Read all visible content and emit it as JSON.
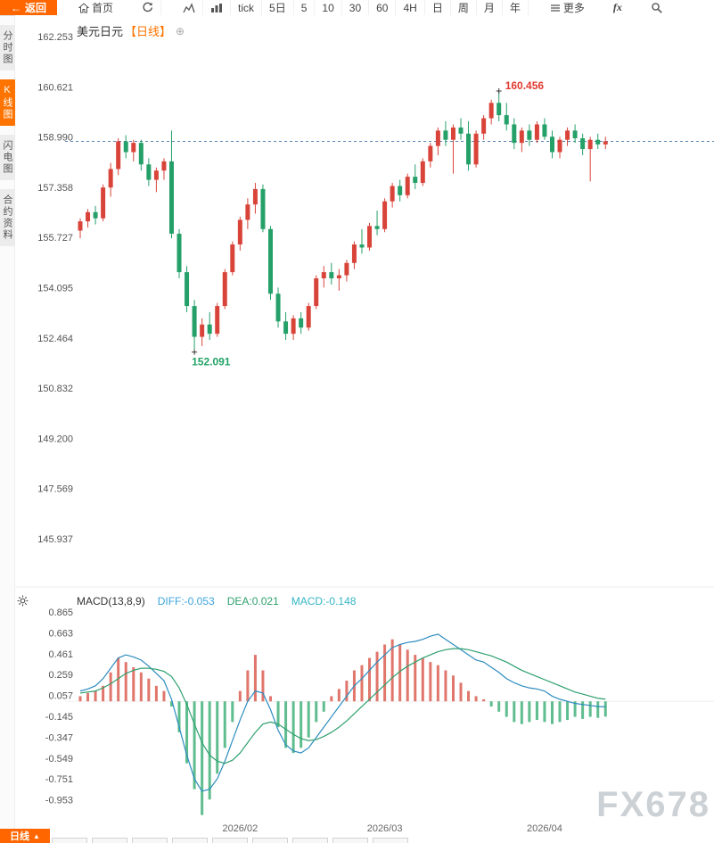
{
  "toolbar": {
    "back_label": "返回",
    "home_label": "首页",
    "periods": [
      "tick",
      "5日",
      "5",
      "10",
      "30",
      "60",
      "4H",
      "日",
      "周",
      "月",
      "年"
    ],
    "more_label": "更多",
    "fx_label": "fx"
  },
  "icons": {
    "back": "←",
    "add_circle": "⊕",
    "caret_up": "▲"
  },
  "sidebar": {
    "items": [
      {
        "label": "分时图",
        "active": false
      },
      {
        "label": "K线图",
        "active": true
      },
      {
        "label": "闪电图",
        "active": false
      },
      {
        "label": "合约资料",
        "active": false
      }
    ]
  },
  "chart_header": {
    "symbol": "美元日元",
    "period": "【日线】"
  },
  "macd_header": {
    "name": "MACD(13,8,9)",
    "diff": "DIFF:-0.053",
    "dea": "DEA:0.021",
    "macd": "MACD:-0.148"
  },
  "bottom_bar": {
    "active_tab": "日线"
  },
  "watermark": "FX678",
  "colors": {
    "up": "#d9443a",
    "down": "#25a069",
    "hist_up": "#e0766c",
    "hist_down": "#5fbd8f",
    "diff_line": "#2d8cbf",
    "dea_line": "#2fa06e",
    "last_price_line": "#5b87b8",
    "annotation_high": "#e23a30",
    "annotation_low": "#21a366",
    "accent": "#ff6600"
  },
  "chart_data": {
    "type": "candlestick",
    "title": "美元日元 日线 (USD/JPY daily with MACD(13,8,9))",
    "price_axis_labels": [
      "162.253",
      "160.621",
      "158.990",
      "157.358",
      "155.727",
      "154.095",
      "152.464",
      "150.832",
      "149.200",
      "147.569",
      "145.937"
    ],
    "macd_axis_labels": [
      "0.865",
      "0.663",
      "0.461",
      "0.259",
      "0.057",
      "-0.145",
      "-0.347",
      "-0.549",
      "-0.751",
      "-0.953"
    ],
    "x_ticks": [
      {
        "index": 21,
        "label": "2026/02"
      },
      {
        "index": 40,
        "label": "2026/03"
      },
      {
        "index": 61,
        "label": "2026/04"
      }
    ],
    "high_annotation": {
      "index": 55,
      "price": 160.456,
      "label": "160.456"
    },
    "low_annotation": {
      "index": 15,
      "price": 152.091,
      "label": "152.091"
    },
    "last_price": 158.85,
    "candles": [
      [
        155.95,
        156.35,
        155.7,
        156.25
      ],
      [
        156.25,
        156.65,
        156.05,
        156.55
      ],
      [
        156.55,
        156.75,
        156.15,
        156.35
      ],
      [
        156.35,
        157.45,
        156.25,
        157.35
      ],
      [
        157.35,
        158.15,
        157.05,
        157.95
      ],
      [
        157.95,
        158.95,
        157.75,
        158.85
      ],
      [
        158.85,
        159.05,
        158.3,
        158.5
      ],
      [
        158.5,
        158.9,
        158.2,
        158.8
      ],
      [
        158.8,
        158.9,
        157.9,
        158.1
      ],
      [
        158.1,
        158.3,
        157.4,
        157.6
      ],
      [
        157.6,
        158.0,
        157.2,
        157.9
      ],
      [
        157.9,
        158.3,
        157.6,
        158.2
      ],
      [
        158.2,
        159.2,
        155.7,
        155.85
      ],
      [
        155.85,
        156.0,
        154.4,
        154.6
      ],
      [
        154.6,
        154.8,
        153.3,
        153.5
      ],
      [
        153.5,
        153.7,
        152.09,
        152.5
      ],
      [
        152.5,
        153.1,
        152.2,
        152.9
      ],
      [
        152.9,
        153.3,
        152.4,
        152.6
      ],
      [
        152.6,
        153.6,
        152.5,
        153.5
      ],
      [
        153.5,
        154.7,
        153.4,
        154.6
      ],
      [
        154.6,
        155.6,
        154.5,
        155.5
      ],
      [
        155.5,
        156.4,
        155.3,
        156.3
      ],
      [
        156.3,
        157.0,
        156.0,
        156.8
      ],
      [
        156.8,
        157.5,
        156.5,
        157.3
      ],
      [
        157.3,
        157.45,
        155.9,
        156.0
      ],
      [
        156.0,
        156.1,
        153.7,
        153.9
      ],
      [
        153.9,
        154.1,
        152.8,
        153.0
      ],
      [
        153.0,
        153.3,
        152.4,
        152.6
      ],
      [
        152.6,
        153.2,
        152.4,
        153.1
      ],
      [
        153.1,
        153.3,
        152.6,
        152.8
      ],
      [
        152.8,
        153.6,
        152.7,
        153.5
      ],
      [
        153.5,
        154.5,
        153.4,
        154.4
      ],
      [
        154.4,
        154.8,
        154.1,
        154.6
      ],
      [
        154.6,
        154.9,
        154.2,
        154.4
      ],
      [
        154.4,
        154.7,
        154.0,
        154.5
      ],
      [
        154.5,
        155.0,
        154.3,
        154.9
      ],
      [
        154.9,
        155.6,
        154.7,
        155.5
      ],
      [
        155.5,
        156.0,
        155.2,
        155.4
      ],
      [
        155.4,
        156.2,
        155.3,
        156.1
      ],
      [
        156.1,
        156.6,
        155.8,
        156.0
      ],
      [
        156.0,
        157.0,
        155.9,
        156.9
      ],
      [
        156.9,
        157.5,
        156.7,
        157.4
      ],
      [
        157.4,
        157.6,
        156.9,
        157.1
      ],
      [
        157.1,
        157.8,
        157.0,
        157.7
      ],
      [
        157.7,
        158.1,
        157.3,
        157.5
      ],
      [
        157.5,
        158.3,
        157.4,
        158.2
      ],
      [
        158.2,
        158.8,
        158.0,
        158.7
      ],
      [
        158.7,
        159.3,
        158.4,
        159.2
      ],
      [
        159.2,
        159.5,
        158.7,
        158.9
      ],
      [
        158.9,
        159.4,
        157.8,
        159.3
      ],
      [
        159.3,
        159.6,
        158.9,
        159.1
      ],
      [
        159.1,
        159.5,
        157.9,
        158.1
      ],
      [
        158.1,
        159.2,
        158.0,
        159.1
      ],
      [
        159.1,
        159.7,
        158.9,
        159.6
      ],
      [
        159.6,
        160.2,
        159.4,
        160.1
      ],
      [
        160.1,
        160.456,
        159.5,
        159.7
      ],
      [
        159.7,
        160.1,
        159.2,
        159.4
      ],
      [
        159.4,
        159.6,
        158.6,
        158.8
      ],
      [
        158.8,
        159.3,
        158.5,
        159.2
      ],
      [
        159.2,
        159.4,
        158.7,
        158.9
      ],
      [
        158.9,
        159.5,
        158.8,
        159.4
      ],
      [
        159.4,
        159.6,
        158.9,
        159.0
      ],
      [
        159.0,
        159.2,
        158.3,
        158.5
      ],
      [
        158.5,
        159.0,
        158.3,
        158.9
      ],
      [
        158.9,
        159.3,
        158.7,
        159.2
      ],
      [
        159.2,
        159.4,
        158.8,
        158.95
      ],
      [
        158.95,
        159.1,
        158.4,
        158.6
      ],
      [
        158.6,
        159.0,
        157.55,
        158.9
      ],
      [
        158.9,
        159.1,
        158.6,
        158.75
      ],
      [
        158.75,
        159.0,
        158.6,
        158.85
      ]
    ],
    "macd": {
      "hist": [
        0.05,
        0.08,
        0.1,
        0.15,
        0.28,
        0.42,
        0.38,
        0.33,
        0.28,
        0.22,
        0.15,
        0.1,
        -0.05,
        -0.3,
        -0.6,
        -0.85,
        -1.1,
        -0.95,
        -0.7,
        -0.45,
        -0.2,
        0.1,
        0.3,
        0.45,
        0.3,
        0.05,
        -0.25,
        -0.45,
        -0.5,
        -0.45,
        -0.35,
        -0.2,
        -0.1,
        0.05,
        0.12,
        0.2,
        0.3,
        0.35,
        0.42,
        0.48,
        0.55,
        0.6,
        0.55,
        0.5,
        0.45,
        0.42,
        0.38,
        0.35,
        0.3,
        0.25,
        0.18,
        0.1,
        0.05,
        0.02,
        -0.05,
        -0.1,
        -0.15,
        -0.2,
        -0.22,
        -0.2,
        -0.18,
        -0.2,
        -0.22,
        -0.2,
        -0.18,
        -0.15,
        -0.17,
        -0.15,
        -0.16,
        -0.148
      ],
      "diff": [
        0.1,
        0.12,
        0.15,
        0.22,
        0.32,
        0.42,
        0.45,
        0.43,
        0.4,
        0.34,
        0.27,
        0.2,
        0.02,
        -0.25,
        -0.52,
        -0.75,
        -0.87,
        -0.85,
        -0.75,
        -0.58,
        -0.38,
        -0.18,
        0.0,
        0.1,
        0.08,
        -0.08,
        -0.28,
        -0.42,
        -0.48,
        -0.5,
        -0.45,
        -0.35,
        -0.25,
        -0.15,
        -0.05,
        0.05,
        0.15,
        0.22,
        0.3,
        0.38,
        0.45,
        0.52,
        0.55,
        0.57,
        0.58,
        0.6,
        0.63,
        0.65,
        0.6,
        0.55,
        0.5,
        0.45,
        0.4,
        0.38,
        0.33,
        0.28,
        0.22,
        0.18,
        0.15,
        0.13,
        0.12,
        0.1,
        0.05,
        0.02,
        0.0,
        -0.02,
        -0.03,
        -0.04,
        -0.05,
        -0.053
      ],
      "dea": [
        0.08,
        0.09,
        0.1,
        0.13,
        0.17,
        0.22,
        0.27,
        0.3,
        0.32,
        0.32,
        0.31,
        0.29,
        0.24,
        0.13,
        -0.03,
        -0.22,
        -0.4,
        -0.52,
        -0.58,
        -0.6,
        -0.57,
        -0.5,
        -0.4,
        -0.3,
        -0.22,
        -0.2,
        -0.22,
        -0.27,
        -0.32,
        -0.36,
        -0.38,
        -0.37,
        -0.34,
        -0.3,
        -0.25,
        -0.19,
        -0.12,
        -0.05,
        0.02,
        0.09,
        0.16,
        0.23,
        0.29,
        0.34,
        0.38,
        0.42,
        0.45,
        0.48,
        0.5,
        0.51,
        0.51,
        0.5,
        0.48,
        0.46,
        0.44,
        0.41,
        0.38,
        0.34,
        0.3,
        0.27,
        0.24,
        0.21,
        0.18,
        0.15,
        0.12,
        0.09,
        0.07,
        0.05,
        0.03,
        0.021
      ]
    }
  }
}
